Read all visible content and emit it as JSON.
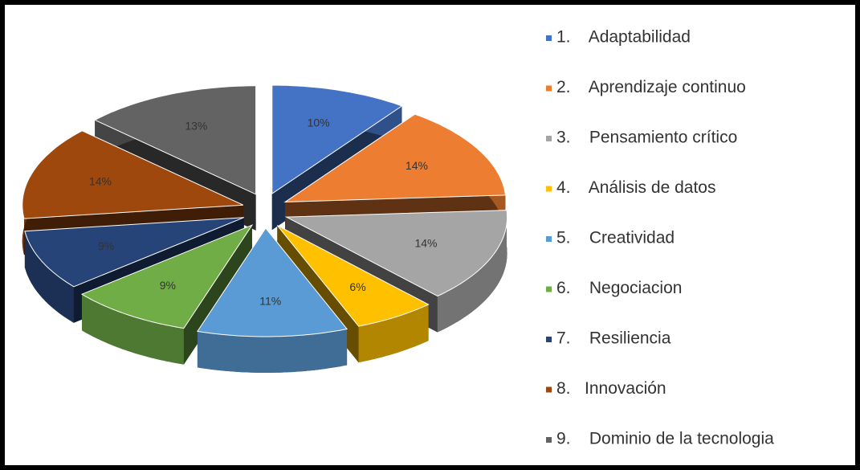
{
  "chart_data": {
    "type": "pie3d",
    "categories": [
      "1.    Adaptabilidad",
      "2.    Aprendizaje continuo",
      "3.    Pensamiento crítico",
      "4.    Análisis de datos",
      "5.    Creatividad",
      "6.    Negociacion",
      "7.    Resiliencia",
      "8.   Innovación",
      "9.    Dominio de la tecnologia"
    ],
    "values": [
      10,
      14,
      14,
      6,
      11,
      9,
      9,
      14,
      13
    ],
    "value_labels": [
      "10%",
      "14%",
      "14%",
      "6%",
      "11%",
      "9%",
      "9%",
      "14%",
      "13%"
    ],
    "colors": [
      "#4472c4",
      "#ed7d31",
      "#a5a5a5",
      "#ffc000",
      "#5b9bd5",
      "#70ad47",
      "#264478",
      "#9e480e",
      "#636363"
    ],
    "legend": "right"
  }
}
